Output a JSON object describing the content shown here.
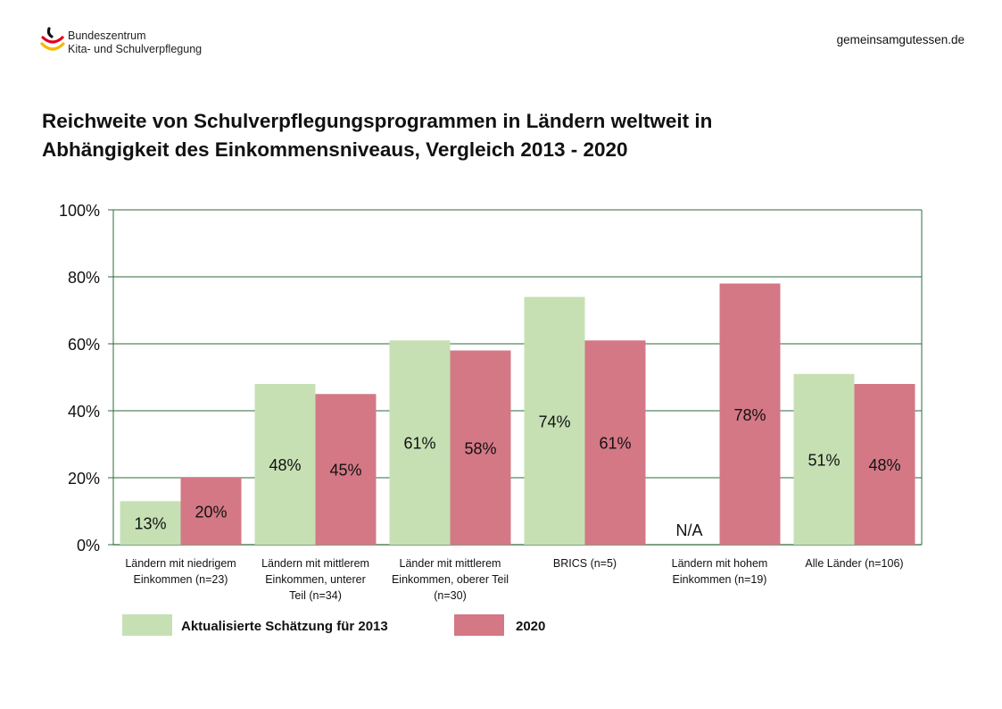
{
  "header": {
    "logo_line1": "Bundeszentrum",
    "logo_line2": "Kita- und Schulverpflegung",
    "site": "gemeinsamgutessen.de"
  },
  "title_line1": "Reichweite von Schulverpflegungsprogrammen in Ländern weltweit in",
  "title_line2": "Abhängigkeit des Einkommensniveaus, Vergleich 2013 - 2020",
  "colors": {
    "series_2013": "#c6e0b4",
    "series_2020": "#d47886",
    "grid": "#2e6b3a"
  },
  "chart_data": {
    "type": "bar",
    "title": "Reichweite von Schulverpflegungsprogrammen in Ländern weltweit in Abhängigkeit des Einkommensniveaus, Vergleich 2013 - 2020",
    "categories": [
      [
        "Ländern mit niedrigem",
        "Einkommen (n=23)"
      ],
      [
        "Ländern mit mittlerem",
        "Einkommen, unterer",
        "Teil (n=34)"
      ],
      [
        "Länder mit mittlerem",
        "Einkommen, oberer Teil",
        "(n=30)"
      ],
      [
        "BRICS (n=5)"
      ],
      [
        "Ländern mit hohem",
        "Einkommen (n=19)"
      ],
      [
        "Alle Länder (n=106)"
      ]
    ],
    "series": [
      {
        "name": "Aktualisierte Schätzung für 2013",
        "values": [
          13,
          48,
          61,
          74,
          null,
          51
        ],
        "labels": [
          "13%",
          "48%",
          "61%",
          "74%",
          "N/A",
          "51%"
        ]
      },
      {
        "name": "2020",
        "values": [
          20,
          45,
          58,
          61,
          78,
          48
        ],
        "labels": [
          "20%",
          "45%",
          "58%",
          "61%",
          "78%",
          "48%"
        ]
      }
    ],
    "ylim": [
      0,
      100
    ],
    "yticks": [
      "0%",
      "20%",
      "40%",
      "60%",
      "80%",
      "100%"
    ],
    "grid": true,
    "legend_placement": "bottom-left"
  }
}
